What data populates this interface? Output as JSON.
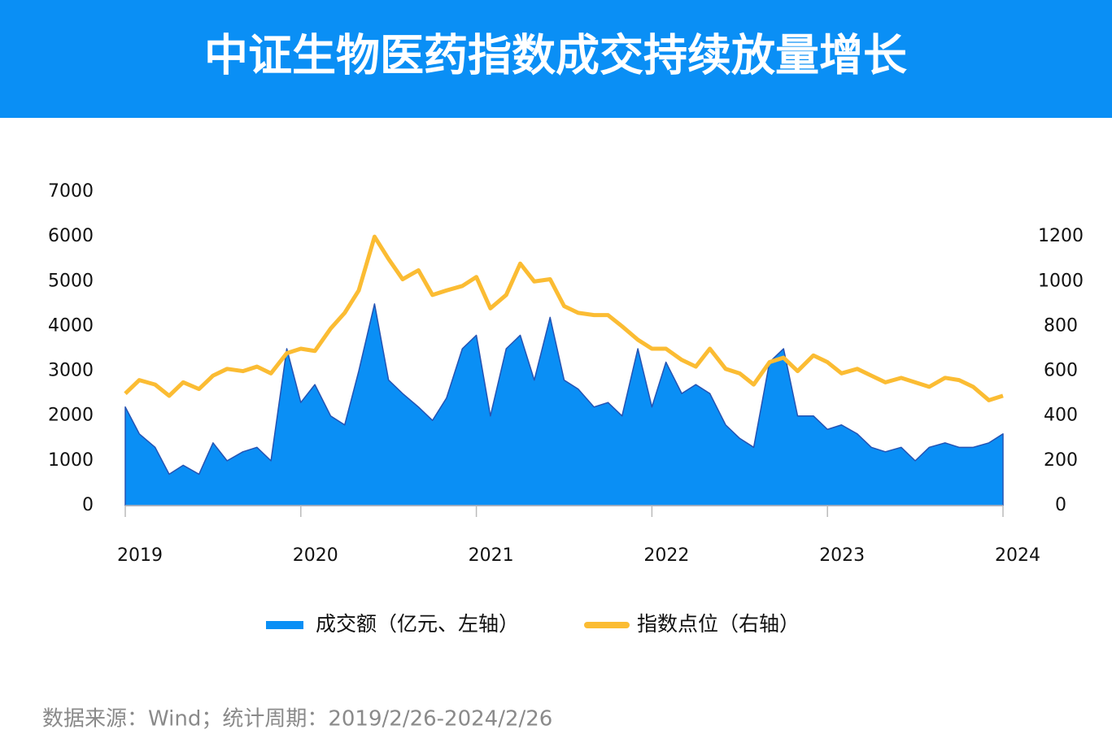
{
  "chart_data": {
    "type": "combo",
    "title": "中证生物医药指数成交持续放量增长",
    "source": "数据来源：Wind；统计周期：2019/2/26-2024/2/26",
    "x": [
      2019,
      2019.08,
      2019.17,
      2019.25,
      2019.33,
      2019.42,
      2019.5,
      2019.58,
      2019.67,
      2019.75,
      2019.83,
      2019.92,
      2020,
      2020.08,
      2020.17,
      2020.25,
      2020.33,
      2020.42,
      2020.5,
      2020.58,
      2020.67,
      2020.75,
      2020.83,
      2020.92,
      2021,
      2021.08,
      2021.17,
      2021.25,
      2021.33,
      2021.42,
      2021.5,
      2021.58,
      2021.67,
      2021.75,
      2021.83,
      2021.92,
      2022,
      2022.08,
      2022.17,
      2022.25,
      2022.33,
      2022.42,
      2022.5,
      2022.58,
      2022.67,
      2022.75,
      2022.83,
      2022.92,
      2023,
      2023.08,
      2023.17,
      2023.25,
      2023.33,
      2023.42,
      2023.5,
      2023.58,
      2023.67,
      2023.75,
      2023.83,
      2023.92,
      2024
    ],
    "xlim": [
      2019,
      2024
    ],
    "xticks": [
      2019,
      2020,
      2021,
      2022,
      2023,
      2024
    ],
    "ylim": [
      0,
      7000
    ],
    "yticks": [
      0,
      1000,
      2000,
      3000,
      4000,
      5000,
      6000,
      7000
    ],
    "y2lim": [
      0,
      1400
    ],
    "y2ticks": [
      0,
      200,
      400,
      600,
      800,
      1000,
      1200
    ],
    "series": [
      {
        "name": "成交额（亿元、左轴）",
        "type": "area",
        "color": "#0a8ff5",
        "values": [
          2200,
          1600,
          1300,
          700,
          900,
          700,
          1400,
          1000,
          1200,
          1300,
          1000,
          3500,
          2300,
          2700,
          2000,
          1800,
          3000,
          4500,
          2800,
          2500,
          2200,
          1900,
          2400,
          3500,
          3800,
          2000,
          3500,
          3800,
          2800,
          4200,
          2800,
          2600,
          2200,
          2300,
          2000,
          3500,
          2200,
          3200,
          2500,
          2700,
          2500,
          1800,
          1500,
          1300,
          3200,
          3500,
          2000,
          2000,
          1700,
          1800,
          1600,
          1300,
          1200,
          1300,
          1000,
          1300,
          1400,
          1300,
          1300,
          1400,
          1600
        ]
      },
      {
        "name": "指数点位（右轴）",
        "type": "line",
        "color": "#fbbc33",
        "axis": "y2",
        "values": [
          500,
          560,
          540,
          490,
          550,
          520,
          580,
          610,
          600,
          620,
          590,
          680,
          700,
          690,
          790,
          860,
          960,
          1200,
          1100,
          1010,
          1050,
          940,
          960,
          980,
          1020,
          880,
          940,
          1080,
          1000,
          1010,
          890,
          860,
          850,
          850,
          800,
          740,
          700,
          700,
          650,
          620,
          700,
          610,
          590,
          540,
          640,
          660,
          600,
          670,
          640,
          590,
          610,
          580,
          550,
          570,
          550,
          530,
          570,
          560,
          530,
          470,
          490
        ]
      }
    ]
  }
}
